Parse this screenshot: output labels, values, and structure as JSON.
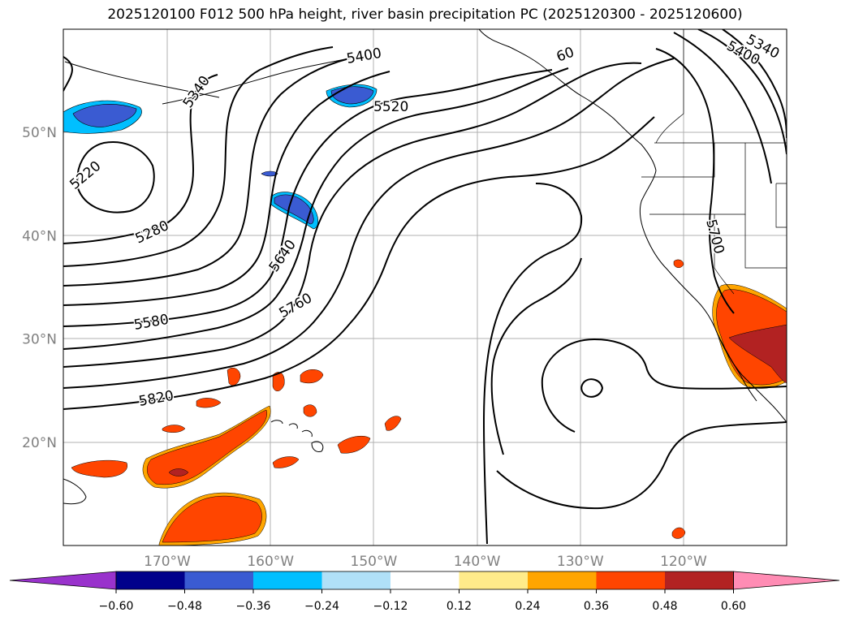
{
  "title": "2025120100 F012 500 hPa height, river basin precipitation PC (2025120300 - 2025120600)",
  "lat_labels": [
    {
      "text": "50°N",
      "lat": 50
    },
    {
      "text": "40°N",
      "lat": 40
    },
    {
      "text": "30°N",
      "lat": 30
    },
    {
      "text": "20°N",
      "lat": 20
    }
  ],
  "lon_labels": [
    {
      "text": "170°W",
      "lon": -170
    },
    {
      "text": "160°W",
      "lon": -160
    },
    {
      "text": "150°W",
      "lon": -150
    },
    {
      "text": "140°W",
      "lon": -140
    },
    {
      "text": "130°W",
      "lon": -130
    },
    {
      "text": "120°W",
      "lon": -120
    }
  ],
  "contour_labels": [
    "5220",
    "5280",
    "5340",
    "5400",
    "5520",
    "5580",
    "5640",
    "5700",
    "5760",
    "5820",
    "5400",
    "5340",
    "60"
  ],
  "colorbar": {
    "ticks": [
      "−0.60",
      "−0.48",
      "−0.36",
      "−0.24",
      "−0.12",
      "0.12",
      "0.24",
      "0.36",
      "0.48",
      "0.60"
    ],
    "colors": [
      "#9932cc",
      "#00008b",
      "#3a5bd2",
      "#00bfff",
      "#b0e0f8",
      "#ffffff",
      "#ffeb8a",
      "#ffa500",
      "#ff4500",
      "#b22222",
      "#ff8cb4"
    ]
  },
  "colors": {
    "grid": "#b0b0b0",
    "axis_label": "#808080",
    "contour": "#000000",
    "pos_mid": "#ff4500",
    "pos_high": "#b22222",
    "pos_low": "#ffa500",
    "neg_mid": "#3a5bd2",
    "neg_low": "#00bfff"
  }
}
